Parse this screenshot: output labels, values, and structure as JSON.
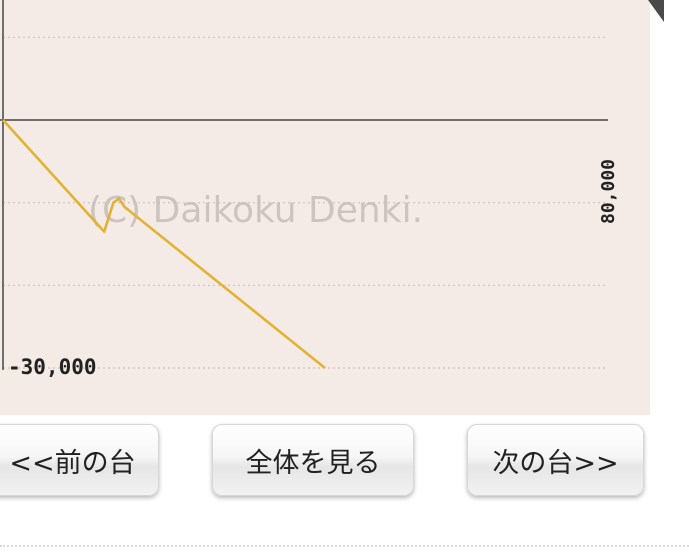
{
  "chart": {
    "watermark": "(C) Daikoku Denki.",
    "y_label_bottom": "-30,000",
    "right_label": "80,000",
    "line_color": "#e2b233",
    "background_color": "#f5ebe6"
  },
  "chart_data": {
    "type": "line",
    "title": "",
    "xlabel": "",
    "ylabel": "",
    "ylim": [
      -30000,
      20000
    ],
    "grid": true,
    "tick_labels_y": [
      "-30,000"
    ],
    "series": [
      {
        "color": "#e2b233",
        "x": [
          0,
          11000,
          12000,
          12600,
          13200,
          35000
        ],
        "y": [
          0,
          -13500,
          -10000,
          -9500,
          -10500,
          -30000
        ]
      }
    ]
  },
  "buttons": {
    "prev_label": "<<前の台",
    "all_label": "全体を見る",
    "next_label": "次の台>>"
  }
}
